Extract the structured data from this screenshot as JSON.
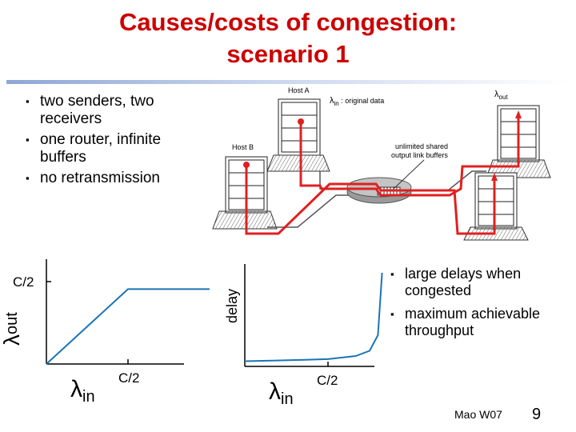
{
  "title": {
    "line1": "Causes/costs of congestion:",
    "line2": "scenario 1"
  },
  "bullets_left": [
    "two senders, two receivers",
    "one router, infinite buffers",
    "no retransmission"
  ],
  "bullets_right": [
    "large delays when congested",
    "maximum achievable throughput"
  ],
  "diagram": {
    "host_a": "Host A",
    "host_b": "Host B",
    "lambda": "λ",
    "in_sub": "in",
    "out_sub": "out",
    "original_data": " : original data",
    "buffer_label_1": "unlimited shared",
    "buffer_label_2": "output link buffers"
  },
  "colors": {
    "accent": "#cc0000",
    "curve": "#1a74b8",
    "path": "#e02020"
  },
  "chart_data": [
    {
      "type": "line",
      "title": "",
      "xlabel": "λin",
      "ylabel": "λout",
      "x": [
        0,
        0.5,
        1
      ],
      "y": [
        0,
        0.5,
        0.5
      ],
      "x_ticks": [
        "C/2"
      ],
      "y_ticks": [
        "C/2"
      ],
      "xlim": [
        0,
        1
      ],
      "ylim": [
        0,
        0.7
      ]
    },
    {
      "type": "line",
      "title": "",
      "xlabel": "λin",
      "ylabel": "delay",
      "x": [
        0,
        0.1,
        0.2,
        0.3,
        0.4,
        0.45,
        0.48,
        0.495
      ],
      "y": [
        0.05,
        0.056,
        0.062,
        0.07,
        0.1,
        0.15,
        0.3,
        0.9
      ],
      "x_ticks": [
        "C/2"
      ],
      "asymptote_x": 0.5,
      "xlim": [
        0,
        0.6
      ],
      "ylim": [
        0,
        1
      ]
    }
  ],
  "footer": {
    "author": "Mao W07",
    "page": "9"
  }
}
